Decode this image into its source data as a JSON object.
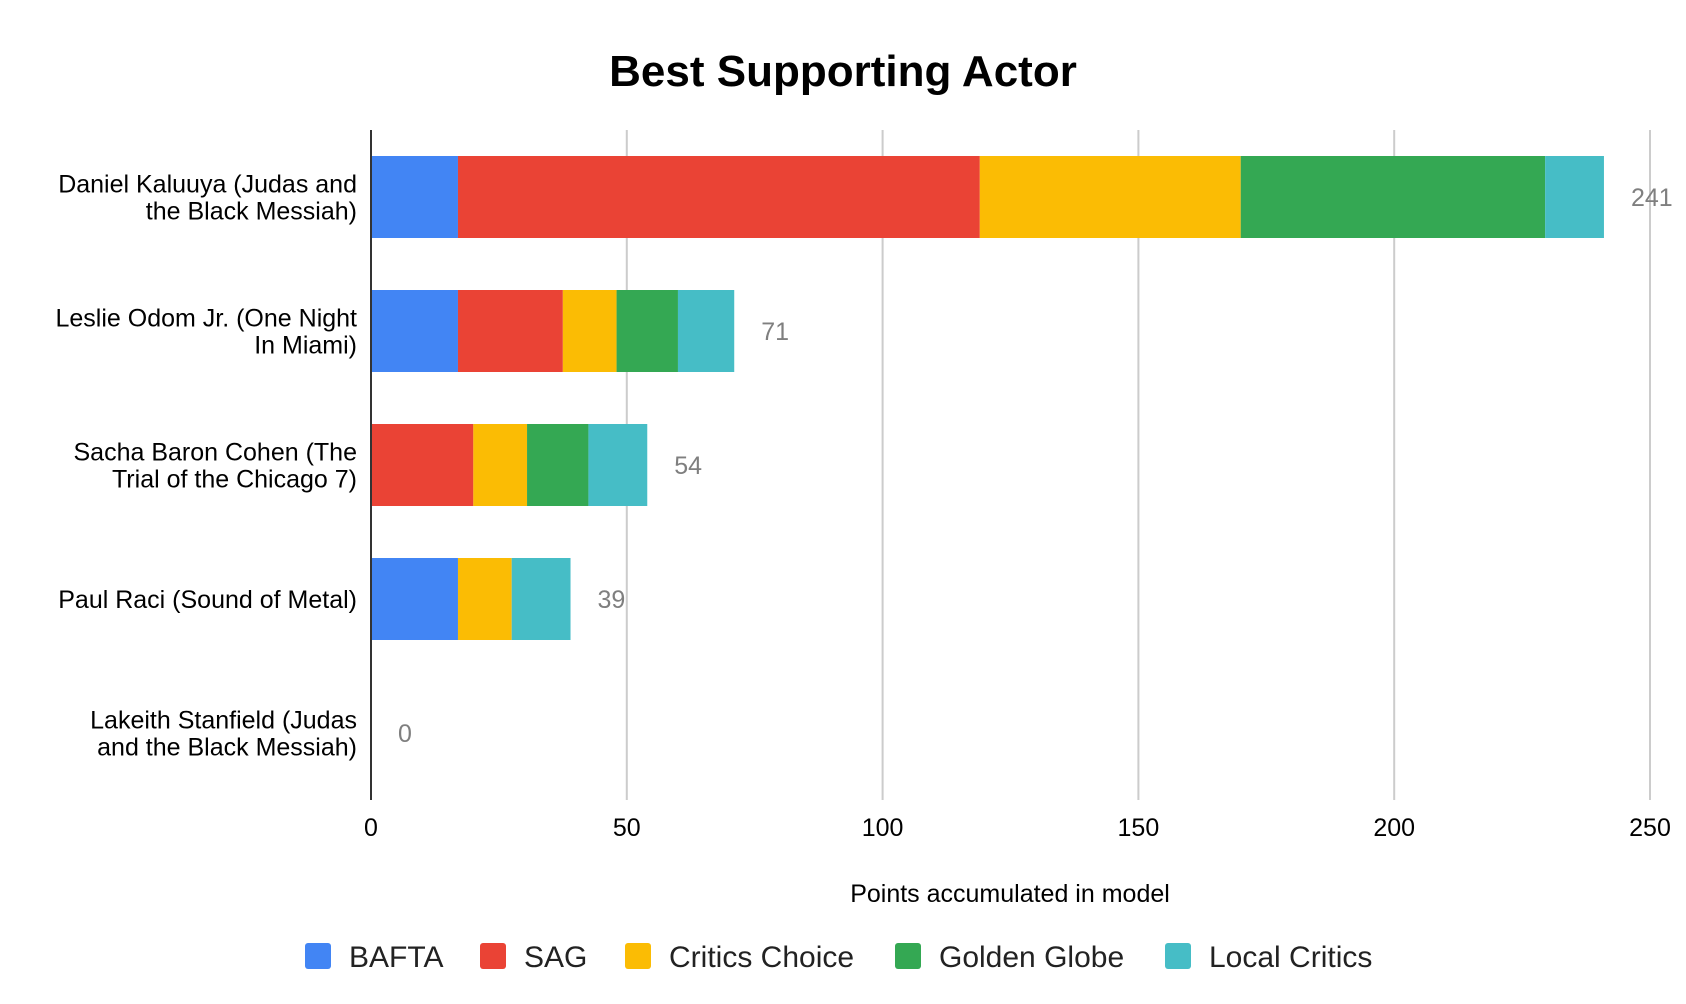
{
  "chart_data": {
    "type": "bar",
    "orientation": "horizontal",
    "stacked": true,
    "title": "Best Supporting Actor",
    "xlabel": "Points accumulated in model",
    "ylabel": "",
    "xlim": [
      0,
      250
    ],
    "xticks": [
      "0",
      "50",
      "100",
      "150",
      "200",
      "250"
    ],
    "grid": true,
    "legend_position": "bottom",
    "categories": [
      [
        "Daniel Kaluuya (Judas and",
        "the Black Messiah)"
      ],
      [
        "Leslie Odom Jr. (One Night",
        "In Miami)"
      ],
      [
        "Sacha Baron Cohen (The",
        "Trial of the Chicago 7)"
      ],
      [
        "Paul Raci (Sound of Metal)"
      ],
      [
        "Lakeith Stanfield (Judas",
        "and the Black Messiah)"
      ]
    ],
    "totals": [
      241,
      71,
      54,
      39,
      0
    ],
    "series": [
      {
        "name": "BAFTA",
        "color": "#4285f4",
        "values": [
          17,
          17,
          0,
          17,
          0
        ]
      },
      {
        "name": "SAG",
        "color": "#ea4335",
        "values": [
          102,
          20.5,
          20,
          0,
          0
        ]
      },
      {
        "name": "Critics Choice",
        "color": "#fbbc04",
        "values": [
          51,
          10.5,
          10.5,
          10.5,
          0
        ]
      },
      {
        "name": "Golden Globe",
        "color": "#34a853",
        "values": [
          59.5,
          12,
          12,
          0,
          0
        ]
      },
      {
        "name": "Local Critics",
        "color": "#46bdc6",
        "values": [
          11.5,
          11,
          11.5,
          11.5,
          0
        ]
      }
    ]
  }
}
